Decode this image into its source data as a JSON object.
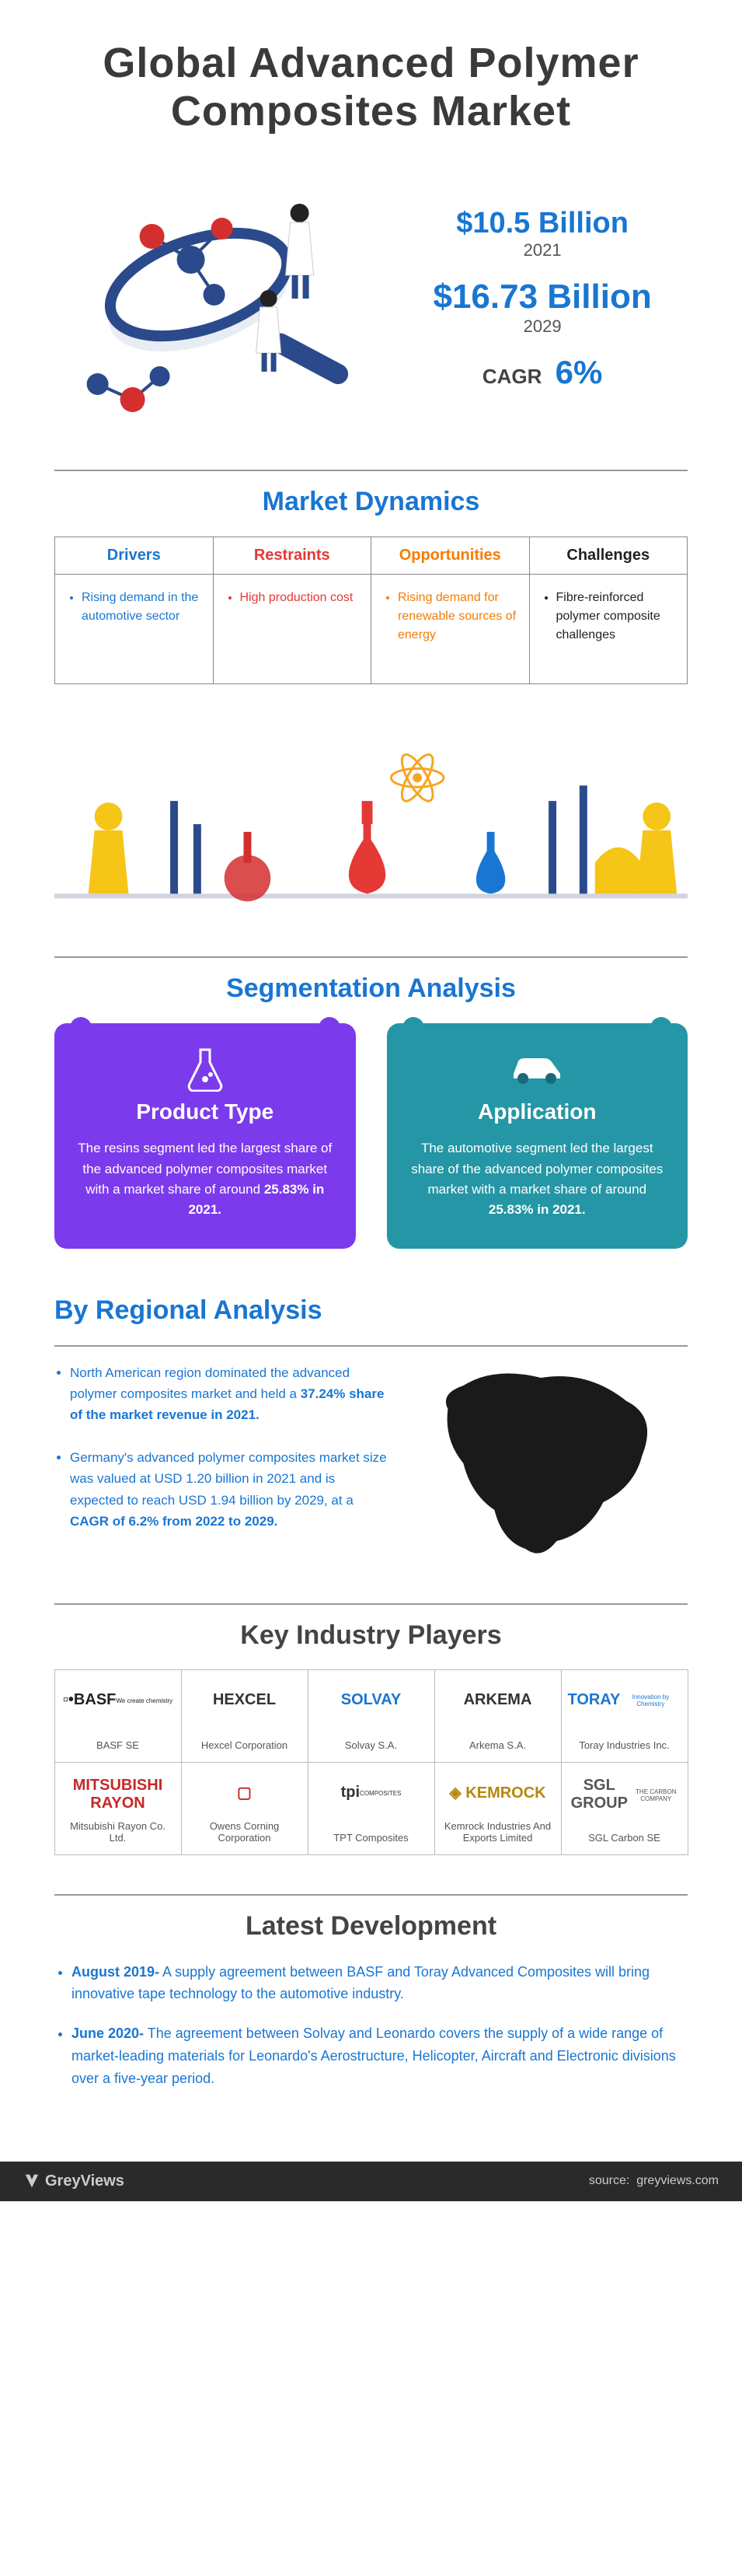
{
  "title": "Global Advanced Polymer Composites Market",
  "hero": {
    "value_2021": "$10.5 Billion",
    "year_2021": "2021",
    "value_2029": "$16.73 Billion",
    "year_2029": "2029",
    "cagr_label": "CAGR",
    "cagr_value": "6%"
  },
  "colors": {
    "blue": "#1976d2",
    "red": "#e53935",
    "orange": "#f57c00",
    "black": "#222222",
    "purple": "#7c3aed",
    "teal": "#2596a5"
  },
  "dynamics": {
    "heading": "Market Dynamics",
    "cols": [
      {
        "head": "Drivers",
        "head_color": "#1976d2",
        "body_color": "#1976d2",
        "items": [
          "Rising demand in the automotive sector"
        ]
      },
      {
        "head": "Restraints",
        "head_color": "#e53935",
        "body_color": "#e53935",
        "items": [
          "High production cost"
        ]
      },
      {
        "head": "Opportunities",
        "head_color": "#f57c00",
        "body_color": "#f57c00",
        "items": [
          "Rising demand for renewable sources of energy"
        ]
      },
      {
        "head": "Challenges",
        "head_color": "#222222",
        "body_color": "#222222",
        "items": [
          "Fibre-reinforced polymer composite challenges"
        ]
      }
    ]
  },
  "segmentation": {
    "heading": "Segmentation Analysis",
    "cards": [
      {
        "title": "Product Type",
        "bg": "#7c3aed",
        "body_pre": "The resins segment led the largest share of the advanced polymer composites market with a market share of around ",
        "body_bold": "25.83% in 2021.",
        "icon": "flask"
      },
      {
        "title": "Application",
        "bg": "#2596a5",
        "body_pre": "The automotive segment led the largest share of the advanced polymer composites market with a market share of around ",
        "body_bold": "25.83% in 2021.",
        "icon": "car"
      }
    ]
  },
  "regional": {
    "heading": "By Regional Analysis",
    "items": [
      {
        "pre": "North American region dominated the advanced polymer composites market and held a ",
        "bold": "37.24% share of the market revenue in 2021."
      },
      {
        "pre": "Germany's advanced polymer composites market size was valued at USD 1.20 billion in 2021 and is expected to reach USD 1.94 billion by 2029, at a ",
        "bold": "CAGR of 6.2% from 2022 to 2029."
      }
    ]
  },
  "players": {
    "heading": "Key Industry Players",
    "items": [
      {
        "logo": "▫•BASF",
        "sub": "We create chemistry",
        "name": "BASF SE",
        "color": "#222"
      },
      {
        "logo": "HEXCEL",
        "sub": "",
        "name": "Hexcel Corporation",
        "color": "#333"
      },
      {
        "logo": "SOLVAY",
        "sub": "",
        "name": "Solvay S.A.",
        "color": "#1976d2"
      },
      {
        "logo": "ARKEMA",
        "sub": "",
        "name": "Arkema S.A.",
        "color": "#333"
      },
      {
        "logo": "TORAY",
        "sub": "Innovation by Chemistry",
        "name": "Toray Industries Inc.",
        "color": "#1976d2"
      },
      {
        "logo": "MITSUBISHI RAYON",
        "sub": "",
        "name": "Mitsubishi Rayon Co. Ltd.",
        "color": "#c62828"
      },
      {
        "logo": "▢",
        "sub": "",
        "name": "Owens Corning Corporation",
        "color": "#c62828"
      },
      {
        "logo": "tpi",
        "sub": "COMPOSITES",
        "name": "TPT Composites",
        "color": "#333"
      },
      {
        "logo": "◈ KEMROCK",
        "sub": "",
        "name": "Kemrock Industries And Exports Limited",
        "color": "#b8860b"
      },
      {
        "logo": "SGL GROUP",
        "sub": "THE CARBON COMPANY",
        "name": "SGL Carbon SE",
        "color": "#555"
      }
    ]
  },
  "developments": {
    "heading": "Latest Development",
    "items": [
      {
        "date": "August 2019-",
        "text": " A supply agreement between BASF and Toray Advanced Composites will bring innovative tape technology to the automotive industry."
      },
      {
        "date": "June 2020-",
        "text": " The agreement between Solvay and Leonardo covers the supply of a wide range of market-leading materials for Leonardo's Aerostructure, Helicopter, Aircraft and Electronic divisions over a five-year period."
      }
    ]
  },
  "footer": {
    "brand": "GreyViews",
    "source_label": "source:",
    "source": "greyviews.com"
  }
}
